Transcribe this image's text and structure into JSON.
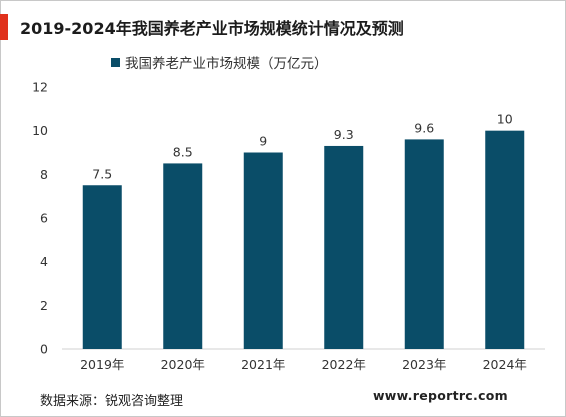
{
  "title": "2019-2024年我国养老产业市场规模统计情况及预测",
  "source": "数据来源：锐观咨询整理",
  "website": "www.reportrc.com",
  "colors": {
    "accent": "#e0311c",
    "bar": "#0a4d68",
    "axis": "#d0d0d0",
    "text": "#333333"
  },
  "chart_data": {
    "type": "bar",
    "title": "2019-2024年我国养老产业市场规模统计情况及预测",
    "xlabel": "",
    "ylabel": "",
    "categories": [
      "2019年",
      "2020年",
      "2021年",
      "2022年",
      "2023年",
      "2024年"
    ],
    "series": [
      {
        "name": "我国养老产业市场规模（万亿元）",
        "values": [
          7.5,
          8.5,
          9,
          9.3,
          9.6,
          10
        ],
        "labels": [
          "7.5",
          "8.5",
          "9",
          "9.3",
          "9.6",
          "10"
        ]
      }
    ],
    "ylim": [
      0,
      12
    ],
    "yticks": [
      0,
      2,
      4,
      6,
      8,
      10,
      12
    ],
    "grid": false,
    "legend": "top-left"
  }
}
